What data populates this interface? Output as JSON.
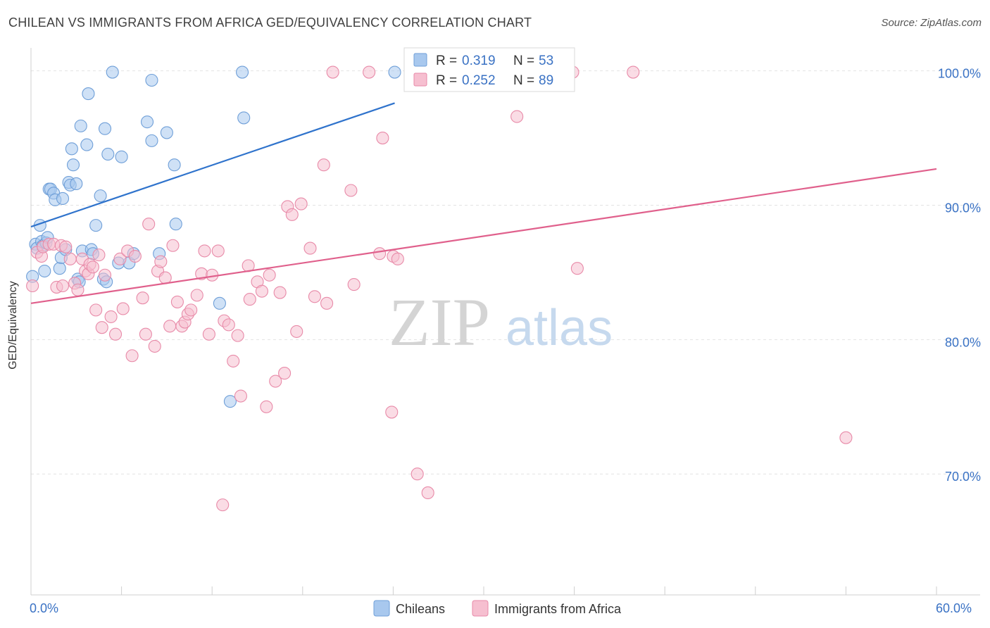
{
  "title": "CHILEAN VS IMMIGRANTS FROM AFRICA GED/EQUIVALENCY CORRELATION CHART",
  "source": "Source: ZipAtlas.com",
  "watermark": {
    "zip": "ZIP",
    "atlas": "atlas"
  },
  "colors": {
    "blue_fill": "#a8c8ee",
    "blue_stroke": "#6f9fd8",
    "blue_line": "#2f73cc",
    "pink_fill": "#f6bfd0",
    "pink_stroke": "#e88aa8",
    "pink_line": "#e0608c",
    "tick_text": "#3a72c4",
    "grid": "#e2e2e2"
  },
  "chart_data": {
    "type": "scatter",
    "title": "CHILEAN VS IMMIGRANTS FROM AFRICA GED/EQUIVALENCY CORRELATION CHART",
    "xlabel": "",
    "ylabel": "GED/Equivalency",
    "xlim": [
      0,
      60
    ],
    "ylim": [
      61,
      101.5
    ],
    "x_tick_labels": [
      {
        "value": 0,
        "label": "0.0%"
      },
      {
        "value": 60,
        "label": "60.0%"
      }
    ],
    "y_tick_labels": [
      {
        "value": 100,
        "label": "100.0%"
      },
      {
        "value": 90,
        "label": "90.0%"
      },
      {
        "value": 80,
        "label": "80.0%"
      },
      {
        "value": 70,
        "label": "70.0%"
      }
    ],
    "grid": true,
    "legend_position": "bottom-center",
    "stats": [
      {
        "r_label": "R =",
        "r": "0.319",
        "n_label": "N =",
        "n": "53"
      },
      {
        "r_label": "R =",
        "r": "0.252",
        "n_label": "N =",
        "n": "89"
      }
    ],
    "series": [
      {
        "name": "Chileans",
        "color": "blue",
        "trend": {
          "x": [
            0,
            24.1
          ],
          "y": [
            88.4,
            97.6
          ]
        },
        "points": [
          [
            0.1,
            84.7
          ],
          [
            0.3,
            87.1
          ],
          [
            0.4,
            86.8
          ],
          [
            0.6,
            88.5
          ],
          [
            0.7,
            87.3
          ],
          [
            0.8,
            87.0
          ],
          [
            0.9,
            85.1
          ],
          [
            1.0,
            87.2
          ],
          [
            1.1,
            87.6
          ],
          [
            1.2,
            91.2
          ],
          [
            1.3,
            91.2
          ],
          [
            1.5,
            90.9
          ],
          [
            1.6,
            90.4
          ],
          [
            1.9,
            85.3
          ],
          [
            2.0,
            86.1
          ],
          [
            2.1,
            90.5
          ],
          [
            2.3,
            86.7
          ],
          [
            2.5,
            91.7
          ],
          [
            2.6,
            91.5
          ],
          [
            2.7,
            94.2
          ],
          [
            2.8,
            93.0
          ],
          [
            3.0,
            91.6
          ],
          [
            3.1,
            84.5
          ],
          [
            3.2,
            84.3
          ],
          [
            3.3,
            95.9
          ],
          [
            3.4,
            86.6
          ],
          [
            3.7,
            94.5
          ],
          [
            3.8,
            98.3
          ],
          [
            4.0,
            86.7
          ],
          [
            4.1,
            86.4
          ],
          [
            4.3,
            88.5
          ],
          [
            4.6,
            90.7
          ],
          [
            4.8,
            84.5
          ],
          [
            4.9,
            95.7
          ],
          [
            5.0,
            84.3
          ],
          [
            5.1,
            93.8
          ],
          [
            5.4,
            99.9
          ],
          [
            5.8,
            85.7
          ],
          [
            6.0,
            93.6
          ],
          [
            6.5,
            85.7
          ],
          [
            6.8,
            86.4
          ],
          [
            7.7,
            96.2
          ],
          [
            8.0,
            99.3
          ],
          [
            8.0,
            94.8
          ],
          [
            8.5,
            86.4
          ],
          [
            9.0,
            95.4
          ],
          [
            9.5,
            93.0
          ],
          [
            9.6,
            88.6
          ],
          [
            12.5,
            82.7
          ],
          [
            13.2,
            75.4
          ],
          [
            14.0,
            99.9
          ],
          [
            14.1,
            96.5
          ],
          [
            24.1,
            99.9
          ]
        ]
      },
      {
        "name": "Immigrants from Africa",
        "color": "pink",
        "trend": {
          "x": [
            0,
            60
          ],
          "y": [
            82.7,
            92.7
          ]
        },
        "points": [
          [
            0.1,
            84.0
          ],
          [
            0.4,
            86.5
          ],
          [
            0.7,
            86.2
          ],
          [
            0.8,
            86.9
          ],
          [
            1.2,
            87.1
          ],
          [
            1.5,
            87.1
          ],
          [
            1.7,
            83.9
          ],
          [
            2.0,
            87.0
          ],
          [
            2.1,
            84.0
          ],
          [
            2.3,
            86.9
          ],
          [
            2.6,
            86.0
          ],
          [
            2.9,
            84.2
          ],
          [
            3.1,
            83.7
          ],
          [
            3.4,
            86.0
          ],
          [
            3.6,
            85.1
          ],
          [
            3.8,
            84.9
          ],
          [
            3.9,
            85.6
          ],
          [
            4.1,
            85.4
          ],
          [
            4.3,
            82.2
          ],
          [
            4.5,
            86.3
          ],
          [
            4.7,
            80.9
          ],
          [
            4.9,
            84.8
          ],
          [
            5.3,
            81.7
          ],
          [
            5.6,
            80.4
          ],
          [
            5.9,
            86.0
          ],
          [
            6.1,
            82.3
          ],
          [
            6.4,
            86.6
          ],
          [
            6.7,
            78.8
          ],
          [
            6.9,
            86.2
          ],
          [
            7.4,
            83.1
          ],
          [
            7.6,
            80.4
          ],
          [
            7.8,
            88.6
          ],
          [
            8.2,
            79.5
          ],
          [
            8.4,
            85.1
          ],
          [
            8.6,
            85.8
          ],
          [
            8.9,
            84.6
          ],
          [
            9.2,
            81.0
          ],
          [
            9.4,
            87.0
          ],
          [
            9.7,
            82.8
          ],
          [
            10.0,
            81.0
          ],
          [
            10.2,
            81.3
          ],
          [
            10.4,
            81.9
          ],
          [
            10.6,
            82.2
          ],
          [
            11.0,
            83.3
          ],
          [
            11.3,
            84.9
          ],
          [
            11.5,
            86.6
          ],
          [
            11.8,
            80.4
          ],
          [
            12.0,
            84.8
          ],
          [
            12.4,
            86.6
          ],
          [
            12.8,
            81.4
          ],
          [
            13.1,
            81.1
          ],
          [
            13.4,
            78.4
          ],
          [
            13.7,
            80.3
          ],
          [
            13.9,
            75.8
          ],
          [
            14.4,
            85.5
          ],
          [
            14.5,
            83.0
          ],
          [
            15.0,
            84.3
          ],
          [
            15.3,
            83.6
          ],
          [
            15.6,
            75.0
          ],
          [
            15.8,
            84.8
          ],
          [
            16.2,
            76.9
          ],
          [
            16.5,
            83.5
          ],
          [
            16.8,
            77.5
          ],
          [
            17.0,
            89.9
          ],
          [
            17.3,
            89.3
          ],
          [
            17.6,
            80.6
          ],
          [
            17.9,
            90.1
          ],
          [
            18.5,
            86.8
          ],
          [
            18.8,
            83.2
          ],
          [
            19.4,
            93.0
          ],
          [
            19.6,
            82.7
          ],
          [
            20.0,
            99.9
          ],
          [
            21.2,
            91.1
          ],
          [
            21.4,
            84.1
          ],
          [
            22.4,
            99.9
          ],
          [
            23.1,
            86.4
          ],
          [
            23.3,
            95.0
          ],
          [
            23.9,
            74.6
          ],
          [
            24.0,
            86.2
          ],
          [
            24.3,
            86.0
          ],
          [
            25.6,
            70.0
          ],
          [
            26.3,
            68.6
          ],
          [
            31.4,
            99.4
          ],
          [
            32.2,
            96.6
          ],
          [
            35.9,
            99.9
          ],
          [
            36.2,
            85.3
          ],
          [
            39.9,
            99.9
          ],
          [
            54.0,
            72.7
          ],
          [
            12.7,
            67.7
          ]
        ]
      }
    ]
  },
  "legend": {
    "items": [
      {
        "label": "Chileans",
        "color": "blue"
      },
      {
        "label": "Immigrants from Africa",
        "color": "pink"
      }
    ]
  }
}
